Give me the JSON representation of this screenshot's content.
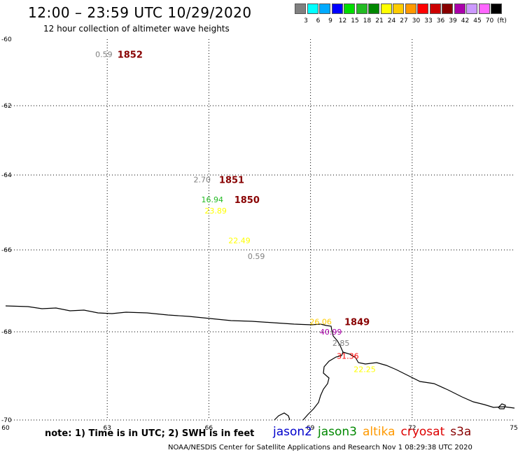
{
  "title": "12:00 – 23:59 UTC 10/29/2020",
  "subtitle": "12 hour collection of altimeter wave heights",
  "scale": {
    "colors": [
      "#808080",
      "#00ffff",
      "#00aaff",
      "#0000ff",
      "#00dd00",
      "#22bb22",
      "#008800",
      "#ffff00",
      "#ffcc00",
      "#ff9900",
      "#ff0000",
      "#cc0000",
      "#880000",
      "#aa00aa",
      "#cc99ff",
      "#ff66ff",
      "#000000"
    ],
    "labels": [
      "3",
      "6",
      "9",
      "12",
      "15",
      "18",
      "21",
      "24",
      "27",
      "30",
      "33",
      "36",
      "39",
      "42",
      "45",
      "70",
      "(ft)"
    ]
  },
  "axes": {
    "lon_labels": [
      "60",
      "63",
      "66",
      "69",
      "72",
      "75"
    ],
    "lat_labels": [
      "-60",
      "-62",
      "-64",
      "-66",
      "-68",
      "-70"
    ]
  },
  "observations": [
    {
      "value": "0.59",
      "color": "#808080",
      "lon": 62.9,
      "lat": -60.45
    },
    {
      "value": "2.70",
      "color": "#808080",
      "lon": 65.8,
      "lat": -64.12
    },
    {
      "value": "16.94",
      "color": "#22bb22",
      "lon": 66.1,
      "lat": -64.65
    },
    {
      "value": "23.89",
      "color": "#ffff00",
      "lon": 66.2,
      "lat": -64.95
    },
    {
      "value": "22.49",
      "color": "#ffff00",
      "lon": 66.9,
      "lat": -65.75
    },
    {
      "value": "0.59",
      "color": "#808080",
      "lon": 67.4,
      "lat": -66.15
    },
    {
      "value": "26.06",
      "color": "#ffcc00",
      "lon": 69.3,
      "lat": -67.75
    },
    {
      "value": "40.99",
      "color": "#aa00aa",
      "lon": 69.6,
      "lat": -68.0
    },
    {
      "value": "2.85",
      "color": "#808080",
      "lon": 69.9,
      "lat": -68.25
    },
    {
      "value": "31.36",
      "color": "#ff0000",
      "lon": 70.1,
      "lat": -68.55
    },
    {
      "value": "22.25",
      "color": "#ffff00",
      "lon": 70.6,
      "lat": -68.85
    }
  ],
  "time_labels": [
    {
      "text": "1852",
      "color": "#880000",
      "lon": 63.3,
      "lat": -60.45
    },
    {
      "text": "1851",
      "color": "#880000",
      "lon": 66.3,
      "lat": -64.12
    },
    {
      "text": "1850",
      "color": "#880000",
      "lon": 66.75,
      "lat": -64.65
    },
    {
      "text": "1849",
      "color": "#880000",
      "lon": 70.0,
      "lat": -67.75
    }
  ],
  "note": "note: 1) Time is in UTC; 2) SWH is in feet",
  "satellites": [
    {
      "name": "jason2",
      "color": "#0000cc"
    },
    {
      "name": "jason3",
      "color": "#008800"
    },
    {
      "name": "altika",
      "color": "#ff9900"
    },
    {
      "name": "cryosat",
      "color": "#dd0000"
    },
    {
      "name": "s3a",
      "color": "#880000"
    }
  ],
  "footer": "NOAA/NESDIS Center for Satellite Applications and Research    Nov  1 08:29:38 UTC 2020"
}
